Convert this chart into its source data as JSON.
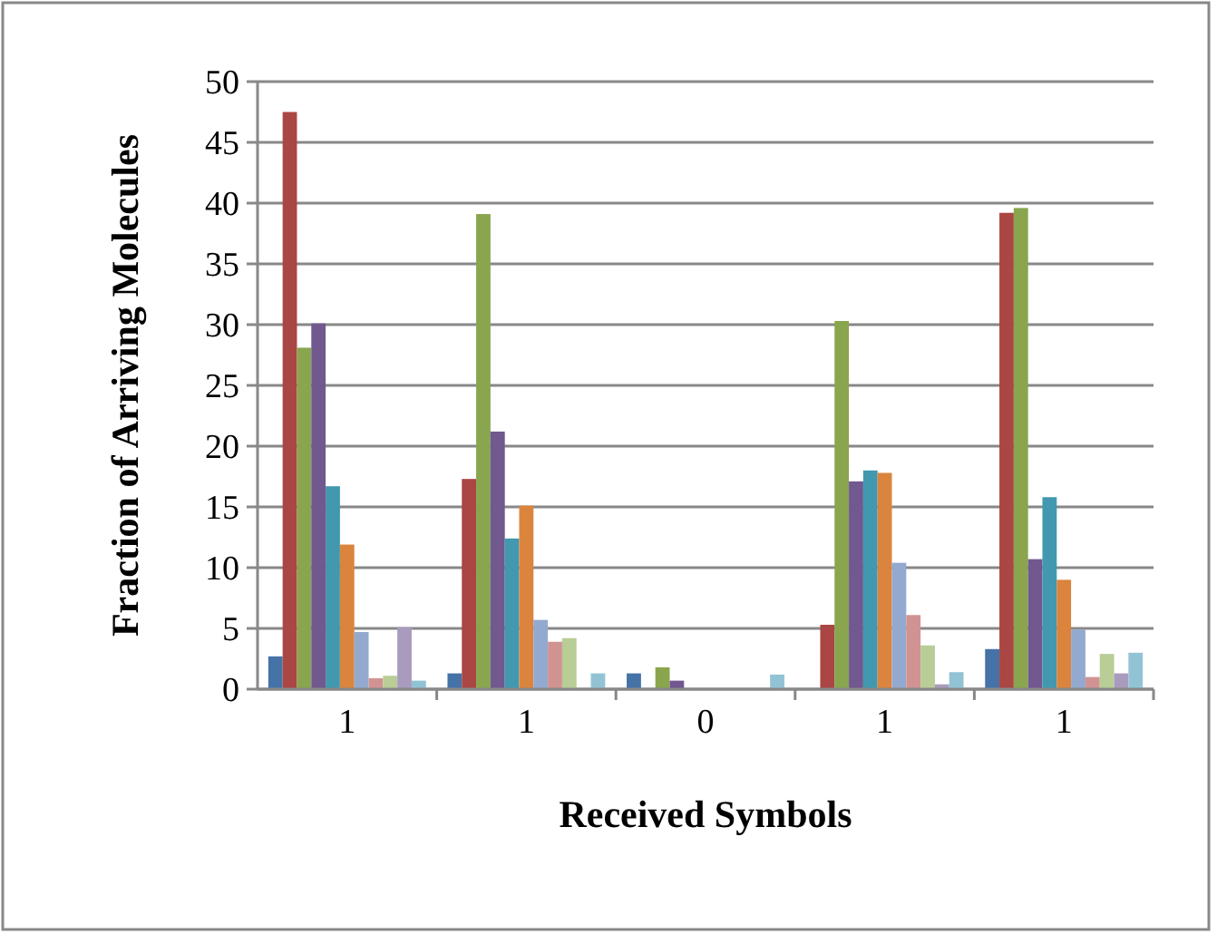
{
  "chart_data": {
    "type": "bar",
    "xlabel": "Received Symbols",
    "ylabel": "Fraction of Arriving Molecules",
    "categories": [
      "1",
      "1",
      "0",
      "1",
      "1"
    ],
    "ylim": [
      0,
      50
    ],
    "yticks": [
      0,
      5,
      10,
      15,
      20,
      25,
      30,
      35,
      40,
      45,
      50
    ],
    "grid": "y",
    "series": [
      {
        "color": "#4572a7",
        "values": [
          2.7,
          1.3,
          1.3,
          0,
          3.3
        ]
      },
      {
        "color": "#aa4643",
        "values": [
          47.5,
          17.3,
          0,
          5.3,
          39.2
        ]
      },
      {
        "color": "#89a54e",
        "values": [
          28.1,
          39.1,
          1.8,
          30.3,
          39.6
        ]
      },
      {
        "color": "#71588f",
        "values": [
          30.1,
          21.2,
          0.7,
          17.1,
          10.7
        ]
      },
      {
        "color": "#4198af",
        "values": [
          16.7,
          12.4,
          0,
          18.0,
          15.8
        ]
      },
      {
        "color": "#db843d",
        "values": [
          11.9,
          15.1,
          0,
          17.8,
          9.0
        ]
      },
      {
        "color": "#93a9cf",
        "values": [
          4.7,
          5.7,
          0,
          10.4,
          4.9
        ]
      },
      {
        "color": "#d19392",
        "values": [
          0.9,
          3.9,
          0,
          6.1,
          1.0
        ]
      },
      {
        "color": "#b9cd96",
        "values": [
          1.1,
          4.2,
          0,
          3.6,
          2.9
        ]
      },
      {
        "color": "#a99bbd",
        "values": [
          5.1,
          0,
          0,
          0.4,
          1.3
        ]
      },
      {
        "color": "#92c3d4",
        "values": [
          0.7,
          1.3,
          1.2,
          1.4,
          3.0
        ]
      }
    ]
  }
}
